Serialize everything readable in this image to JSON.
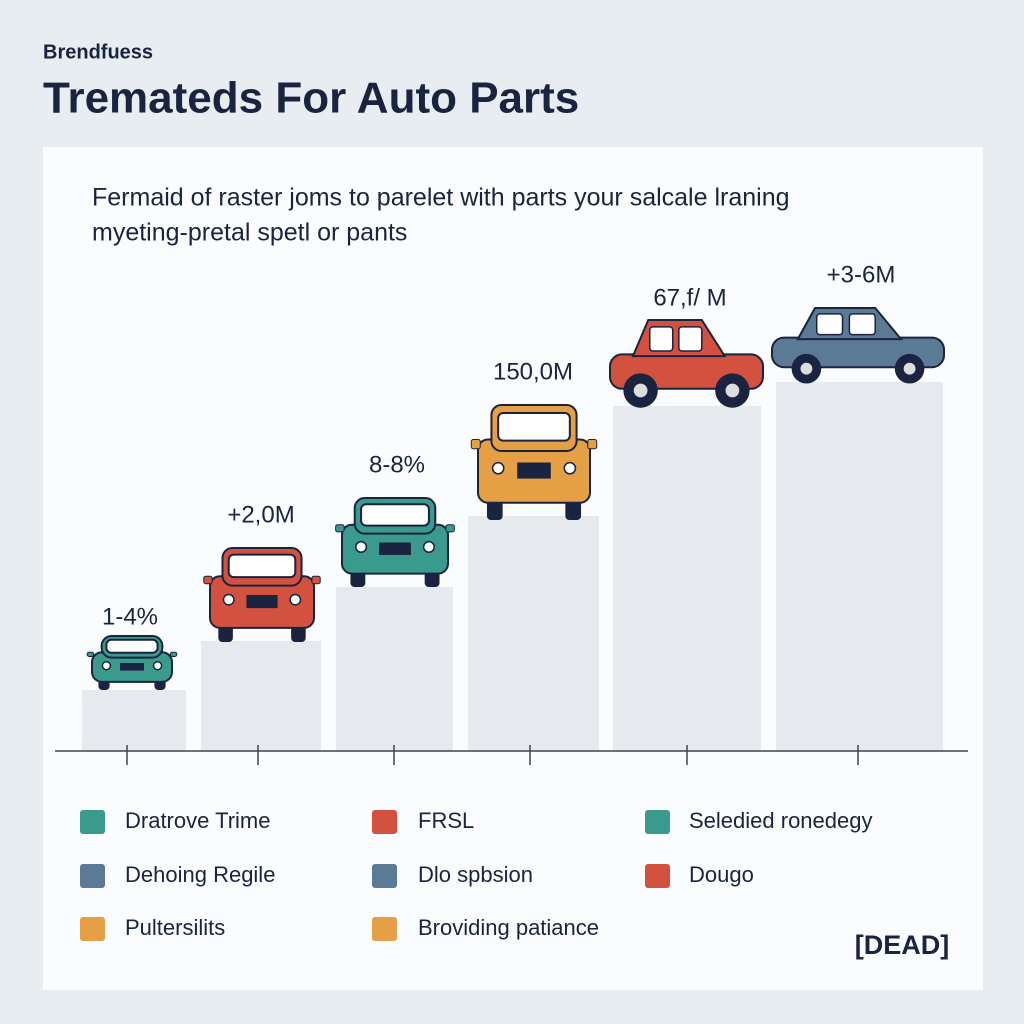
{
  "header": {
    "brand": "Brendfuess",
    "title": "Trematеds For Auto Parts"
  },
  "subtitle": [
    "Fermaid of raster joms to parelet with parts your salcale lraning",
    "myeting-pretal spetl or pants"
  ],
  "columns": [
    {
      "label": "1-4%"
    },
    {
      "label": "+2,0M"
    },
    {
      "label": "8-8%"
    },
    {
      "label": "150,0M"
    },
    {
      "label": "67,f/ M"
    },
    {
      "label": "+3-6M"
    }
  ],
  "legend": [
    {
      "label": "Dratrove Trime",
      "color": "#3a9a8c"
    },
    {
      "label": "FRSL",
      "color": "#d2523f"
    },
    {
      "label": "Seledied ronedegy",
      "color": "#3a9a8c"
    },
    {
      "label": "Dehoing Regile",
      "color": "#5a7a96"
    },
    {
      "label": "Dlo spbsion",
      "color": "#5a7a96"
    },
    {
      "label": "Dougo",
      "color": "#d2523f"
    },
    {
      "label": "Pultersilits",
      "color": "#e5a045"
    },
    {
      "label": "Broviding patiance",
      "color": "#e5a045"
    }
  ],
  "badge": "[DEAD]"
}
